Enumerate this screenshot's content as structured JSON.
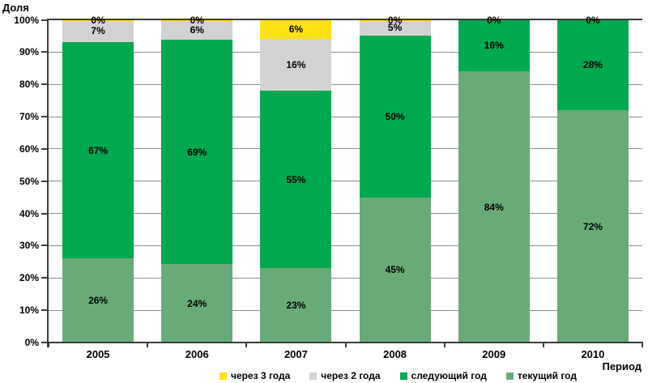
{
  "chart_data": {
    "type": "bar",
    "stacked": true,
    "percent": true,
    "title": "",
    "ylabel": "Доля",
    "xlabel": "Период",
    "categories": [
      "2005",
      "2006",
      "2007",
      "2008",
      "2009",
      "2010"
    ],
    "series": [
      {
        "name": "текущий год",
        "color": "#68AB78",
        "values": [
          26,
          24,
          23,
          45,
          84,
          72
        ]
      },
      {
        "name": "следующий год",
        "color": "#00A84F",
        "values": [
          67,
          69,
          55,
          50,
          16,
          28
        ]
      },
      {
        "name": "через 2 года",
        "color": "#D2D2D2",
        "values": [
          7,
          6,
          16,
          5,
          0,
          0
        ]
      },
      {
        "name": "через 3 года",
        "color": "#FFE214",
        "values": [
          0,
          0,
          6,
          0,
          0,
          0
        ]
      }
    ],
    "segment_labels": [
      "26%",
      "24%",
      "23%",
      "45%",
      "84%",
      "72%",
      "67%",
      "69%",
      "55%",
      "50%",
      "16%",
      "28%",
      "7%",
      "6%",
      "16%",
      "5%",
      "0%",
      "0%",
      "0%",
      "0%",
      "6%",
      "0%",
      "0%",
      "0%"
    ],
    "y_ticks": [
      "0%",
      "10%",
      "20%",
      "30%",
      "40%",
      "50%",
      "60%",
      "70%",
      "80%",
      "90%",
      "100%"
    ],
    "ylim": [
      0,
      100
    ],
    "grid": true,
    "legend_position": "bottom",
    "legend_order": [
      "через 3 года",
      "через 2 года",
      "следующий год",
      "текущий год"
    ]
  },
  "colors": {
    "gridline": "#8c8c8c",
    "axis": "#3c3c3c",
    "text": "#000000",
    "background": "#ffffff"
  }
}
